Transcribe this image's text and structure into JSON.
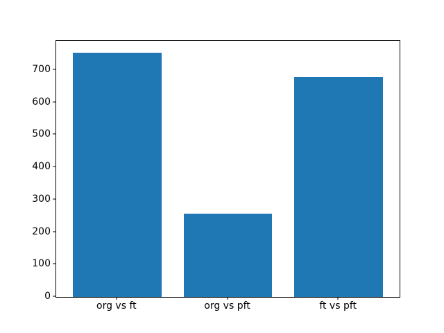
{
  "chart_data": {
    "type": "bar",
    "categories": [
      "org vs ft",
      "org vs pft",
      "ft vs pft"
    ],
    "values": [
      753,
      258,
      679
    ],
    "title": "",
    "xlabel": "",
    "ylabel": "",
    "ylim": [
      0,
      790
    ],
    "xlim": [
      -0.55,
      2.55
    ],
    "yticks": [
      0,
      100,
      200,
      300,
      400,
      500,
      600,
      700
    ],
    "bar_width": 0.8,
    "bar_color": "#1f77b4",
    "grid": false,
    "legend_position": "none",
    "background_color": "#ffffff",
    "spine_color": "#000000"
  }
}
